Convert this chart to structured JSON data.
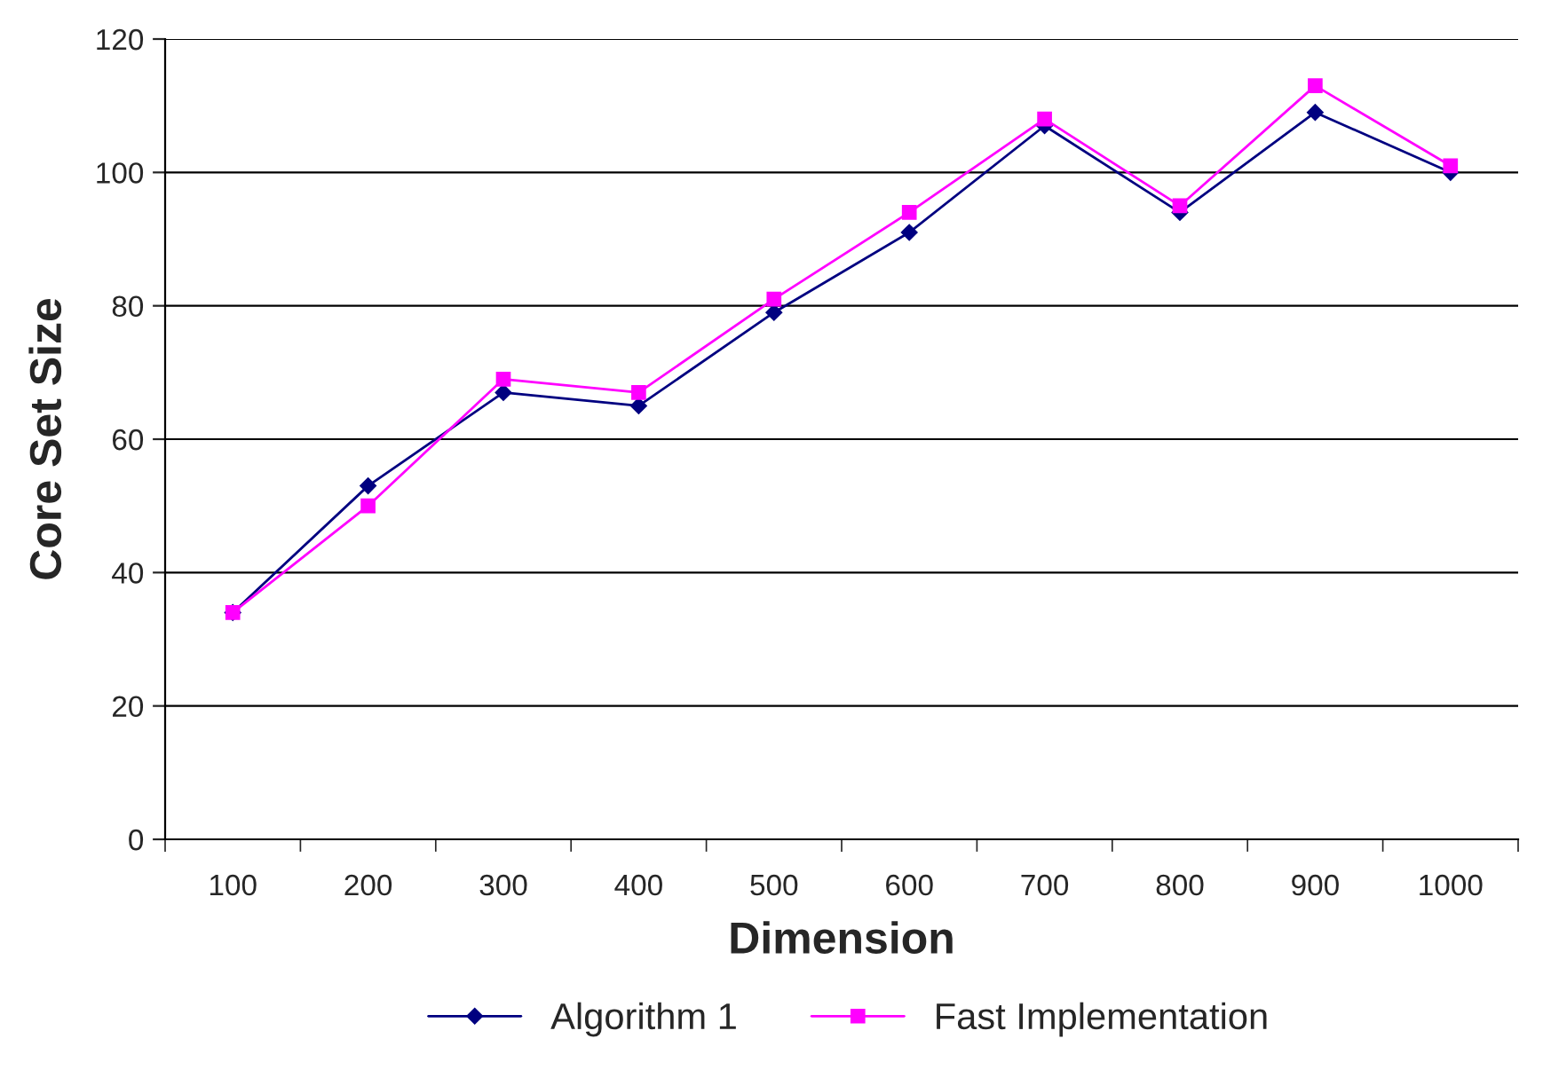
{
  "chart_data": {
    "type": "line",
    "xlabel": "Dimension",
    "ylabel": "Core Set Size",
    "categories": [
      "100",
      "200",
      "300",
      "400",
      "500",
      "600",
      "700",
      "800",
      "900",
      "1000"
    ],
    "series": [
      {
        "name": "Algorithm 1",
        "color": "#000080",
        "marker": "diamond",
        "values": [
          34,
          53,
          67,
          65,
          79,
          91,
          107,
          94,
          109,
          100
        ]
      },
      {
        "name": "Fast Implementation",
        "color": "#ff00ff",
        "marker": "square",
        "values": [
          34,
          50,
          69,
          67,
          81,
          94,
          108,
          95,
          113,
          101
        ]
      }
    ],
    "ylim": [
      0,
      120
    ],
    "yticks": [
      0,
      20,
      40,
      60,
      80,
      100,
      120
    ],
    "grid": "y",
    "legend": "bottom",
    "line_style": "solid"
  }
}
